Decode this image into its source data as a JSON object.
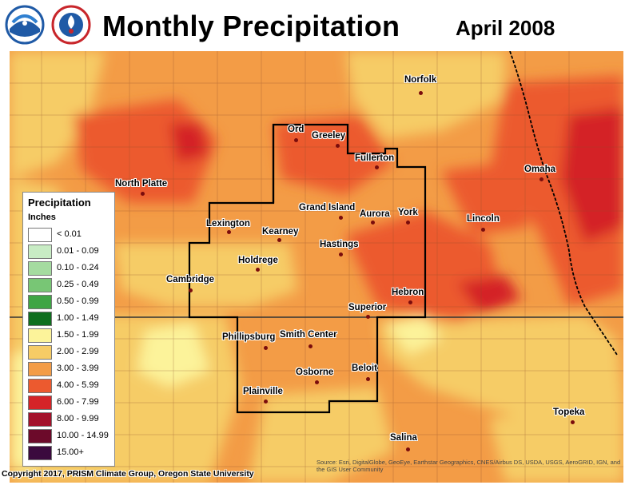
{
  "header": {
    "title": "Monthly Precipitation",
    "date": "April 2008"
  },
  "logos": [
    {
      "name": "noaa-logo",
      "text": "NOAA",
      "color": "#1f5aa6"
    },
    {
      "name": "nws-logo",
      "text": "NATIONAL WEATHER SERVICE",
      "color": "#1f5aa6"
    }
  ],
  "legend": {
    "title": "Precipitation",
    "units": "Inches",
    "items": [
      {
        "label": "< 0.01",
        "color": "#ffffff"
      },
      {
        "label": "0.01 - 0.09",
        "color": "#c8ecc4"
      },
      {
        "label": "0.10 - 0.24",
        "color": "#a5dba0"
      },
      {
        "label": "0.25 - 0.49",
        "color": "#78c675"
      },
      {
        "label": "0.50 - 0.99",
        "color": "#3ea544"
      },
      {
        "label": "1.00 - 1.49",
        "color": "#0f6f1f"
      },
      {
        "label": "1.50 - 1.99",
        "color": "#fcf39a"
      },
      {
        "label": "2.00 - 2.99",
        "color": "#f6cc66"
      },
      {
        "label": "3.00 - 3.99",
        "color": "#f39c46"
      },
      {
        "label": "4.00 - 5.99",
        "color": "#ec5a2f"
      },
      {
        "label": "6.00 - 7.99",
        "color": "#d42428"
      },
      {
        "label": "8.00 - 9.99",
        "color": "#a3122b"
      },
      {
        "label": "10.00 - 14.99",
        "color": "#6c0a2a"
      },
      {
        "label": "15.00+",
        "color": "#3b0a3e"
      }
    ]
  },
  "cities": [
    {
      "name": "Norfolk"
    },
    {
      "name": "Ord"
    },
    {
      "name": "Greeley"
    },
    {
      "name": "Fullerton"
    },
    {
      "name": "Omaha"
    },
    {
      "name": "North Platte"
    },
    {
      "name": "Grand Island"
    },
    {
      "name": "Aurora"
    },
    {
      "name": "York"
    },
    {
      "name": "Lincoln"
    },
    {
      "name": "Lexington"
    },
    {
      "name": "Kearney"
    },
    {
      "name": "Hastings"
    },
    {
      "name": "Holdrege"
    },
    {
      "name": "Cambridge"
    },
    {
      "name": "Hebron"
    },
    {
      "name": "Superior"
    },
    {
      "name": "Phillipsburg"
    },
    {
      "name": "Smith Center"
    },
    {
      "name": "Osborne"
    },
    {
      "name": "Beloit"
    },
    {
      "name": "Plainville"
    },
    {
      "name": "Topeka"
    },
    {
      "name": "Salina"
    }
  ],
  "footer": {
    "copyright": "Copyright 2017, PRISM Climate Group, Oregon State University",
    "sources": "Source: Esri, DigitalGlobe, GeoEye, Earthstar Geographics, CNES/Airbus DS, USDA, USGS, AeroGRID, IGN, and the GIS User Community"
  }
}
